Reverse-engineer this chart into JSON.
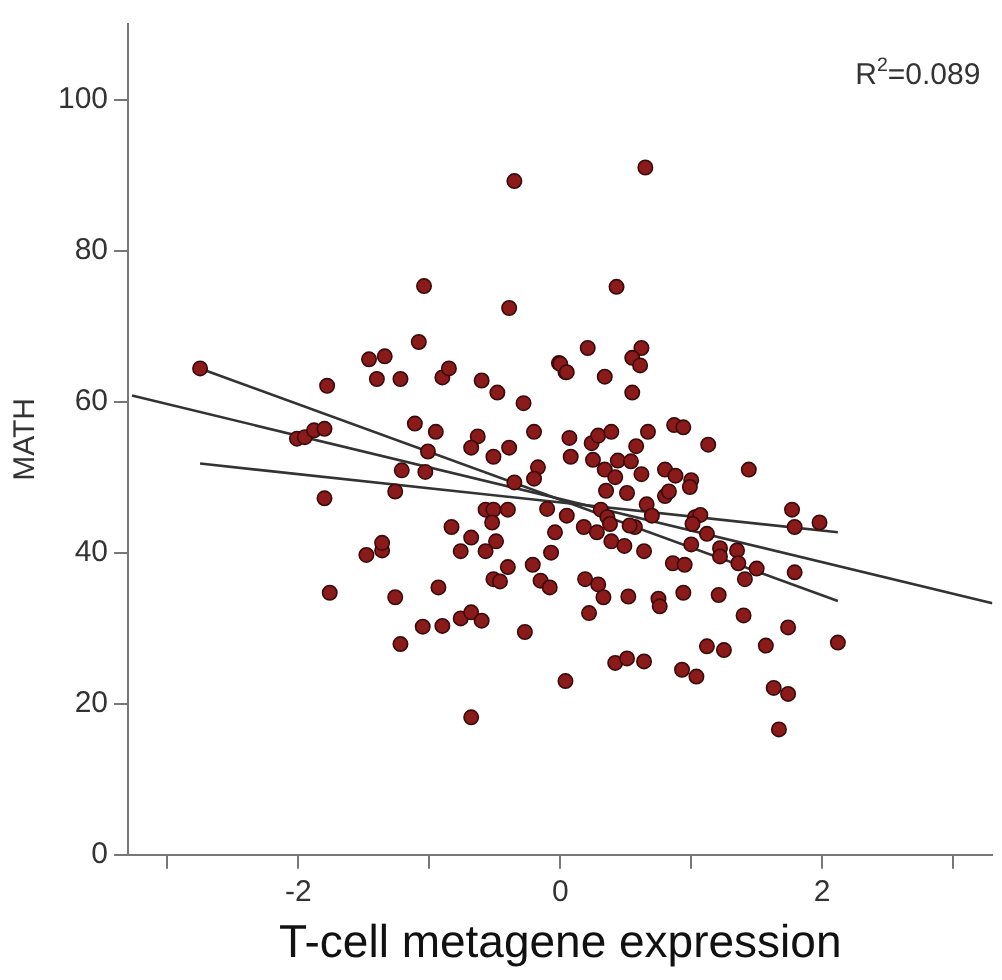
{
  "chart_data": {
    "type": "scatter",
    "xlabel": "T-cell metagene expression",
    "ylabel": "MATH",
    "annotations": [
      "R$^{2}$=0.089"
    ],
    "xlim": [
      -3.3,
      3.3
    ],
    "ylim": [
      0,
      110
    ],
    "xticks": [
      {
        "value": -3,
        "label": null
      },
      -2,
      {
        "value": -1,
        "label": null
      },
      0,
      {
        "value": 1,
        "label": null
      },
      2,
      {
        "value": 3,
        "label": null
      }
    ],
    "yticks": [
      0,
      20,
      40,
      60,
      80,
      100
    ],
    "grid": false,
    "legend": false,
    "marker": "circle",
    "series": [
      {
        "color": "#8b1a1a",
        "x": [
          -2.75,
          -1.78,
          -2.01,
          -1.95,
          -1.88,
          -1.8,
          -1.46,
          -1.34,
          -1.4,
          -1.22,
          -1.08,
          -1.04,
          -0.39,
          -0.35,
          -1.11,
          -0.95,
          -1.01,
          -1.21,
          -1.03,
          -0.9,
          -0.85,
          -0.6,
          -0.48,
          -0.28,
          -0.63,
          -0.68,
          -0.51,
          -0.39,
          -0.2,
          -0.17,
          -0.01,
          0.04,
          0.07,
          0.08,
          0.65,
          0.43,
          0.21,
          0.0,
          0.05,
          0.34,
          0.62,
          0.55,
          0.61,
          0.55,
          0.24,
          0.29,
          0.39,
          0.67,
          0.58,
          0.87,
          0.94,
          1.13,
          1.44,
          0.25,
          0.34,
          0.44,
          0.54,
          0.62,
          0.8,
          0.88,
          1.0,
          -1.26,
          -1.8,
          -0.83,
          -0.68,
          -0.57,
          -0.51,
          -0.52,
          -0.4,
          -0.35,
          -0.2,
          -0.1,
          -0.04,
          -0.49,
          -0.76,
          -0.57,
          -0.4,
          -0.21,
          -0.07,
          -1.48,
          -1.36,
          -1.36,
          -0.51,
          -0.46,
          -0.15,
          -0.08,
          -0.93,
          -1.76,
          -1.26,
          -0.76,
          -0.68,
          -0.6,
          -1.05,
          -0.9,
          -1.22,
          -0.27,
          0.04,
          -0.68,
          0.05,
          0.18,
          0.28,
          0.31,
          0.36,
          0.38,
          0.35,
          0.42,
          0.51,
          0.57,
          0.53,
          0.39,
          0.49,
          0.64,
          0.66,
          0.7,
          0.8,
          0.83,
          0.99,
          1.03,
          1.07,
          1.01,
          1.12,
          1.0,
          1.22,
          1.35,
          1.22,
          1.36,
          1.5,
          1.41,
          0.86,
          0.95,
          0.94,
          1.21,
          1.79,
          1.77,
          1.79,
          1.98,
          0.19,
          0.29,
          0.33,
          0.52,
          0.75,
          0.76,
          0.22,
          1.4,
          1.12,
          1.25,
          1.57,
          1.74,
          2.12,
          0.42,
          0.51,
          0.64,
          0.93,
          1.04,
          1.63,
          1.74,
          1.67
        ],
        "values": [
          64.4,
          62.1,
          55.1,
          55.3,
          56.2,
          56.4,
          65.6,
          66.0,
          63.0,
          63.0,
          67.9,
          75.3,
          72.4,
          89.2,
          57.1,
          56.0,
          53.4,
          50.9,
          50.7,
          63.2,
          64.4,
          62.8,
          61.2,
          59.8,
          55.4,
          53.9,
          52.7,
          53.9,
          56.0,
          51.3,
          65.1,
          63.9,
          55.2,
          52.7,
          91.0,
          75.2,
          67.1,
          65.0,
          63.9,
          63.3,
          67.1,
          65.8,
          64.8,
          61.2,
          54.5,
          55.5,
          56.0,
          56.0,
          54.1,
          56.9,
          56.6,
          54.3,
          51.0,
          52.3,
          51.0,
          52.2,
          52.1,
          50.4,
          51.0,
          50.2,
          49.6,
          48.1,
          47.2,
          43.4,
          42.0,
          45.7,
          45.7,
          44.0,
          45.7,
          49.3,
          49.8,
          45.8,
          42.7,
          41.5,
          40.2,
          40.2,
          38.1,
          38.4,
          40.0,
          39.7,
          40.3,
          41.3,
          36.5,
          36.2,
          36.3,
          35.4,
          35.4,
          34.7,
          34.1,
          31.3,
          32.1,
          31.0,
          30.2,
          30.3,
          27.9,
          29.5,
          23.0,
          18.2,
          44.9,
          43.4,
          42.7,
          45.7,
          44.7,
          43.8,
          48.2,
          50.0,
          47.9,
          43.4,
          43.6,
          41.5,
          40.9,
          40.2,
          46.4,
          44.9,
          47.5,
          48.1,
          48.7,
          44.7,
          45.0,
          43.8,
          42.5,
          41.1,
          40.6,
          40.3,
          39.5,
          38.6,
          37.9,
          36.5,
          38.6,
          38.4,
          34.7,
          34.4,
          37.4,
          45.7,
          43.4,
          44.0,
          36.5,
          35.8,
          34.1,
          34.2,
          33.9,
          32.9,
          32.0,
          31.7,
          27.6,
          27.1,
          27.7,
          30.1,
          28.1,
          25.4,
          26.0,
          25.6,
          24.5,
          23.6,
          22.1,
          21.3,
          16.6
        ]
      },
      {
        "type": "line",
        "color": "#333333",
        "marker": "none",
        "x": [
          -3.27,
          3.3
        ],
        "values": [
          60.8,
          33.3
        ]
      },
      {
        "type": "line",
        "color": "#333333",
        "marker": "none",
        "x": [
          -2.75,
          2.12
        ],
        "values": [
          64.4,
          33.6
        ]
      },
      {
        "type": "line",
        "color": "#333333",
        "marker": "none",
        "x": [
          -2.75,
          2.12
        ],
        "values": [
          51.8,
          42.7
        ]
      }
    ]
  }
}
